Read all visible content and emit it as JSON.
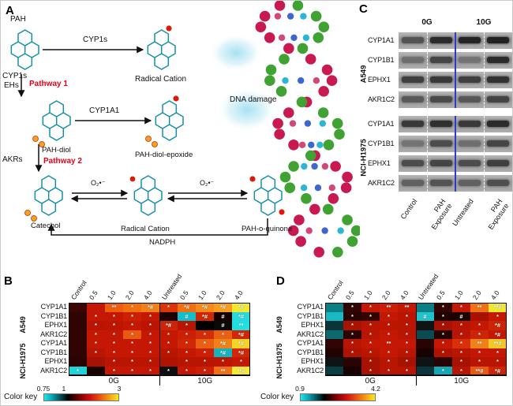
{
  "figure": {
    "panel_a": "A",
    "panel_b": "B",
    "panel_c": "C",
    "panel_d": "D"
  },
  "pathway": {
    "pah": "PAH",
    "cyp1s_arrow": "CYP1s",
    "radical_cation_top": "Radical Cation",
    "cyp1s_left": "CYP1s",
    "ehs_left": "EHs",
    "pathway1": "Pathway 1",
    "cyp1a1_arrow": "CYP1A1",
    "pah_diol": "PAH-diol",
    "pah_diol_epoxide": "PAH-diol-epoxide",
    "dna_damage": "DNA damage",
    "akrs_left": "AKRs",
    "pathway2": "Pathway 2",
    "catechol": "Catechol",
    "radical_cation_bottom": "Radical Cation",
    "o2_left": "O₂•⁻",
    "o2_right": "O₂•⁻",
    "pah_o_quinone": "PAH-o-quinone",
    "nadph": "NADPH"
  },
  "western": {
    "group_labels": [
      "0G",
      "10G"
    ],
    "lane_labels": [
      "Control",
      "PAH\nExposure",
      "Untreated",
      "PAH\nExposure"
    ],
    "blocks": [
      {
        "cell_line": "A549",
        "rows": [
          {
            "gene": "CYP1A1",
            "bands": [
              0.55,
              0.85,
              0.9,
              0.92
            ]
          },
          {
            "gene": "CYP1B1",
            "bands": [
              0.35,
              0.65,
              0.3,
              0.85
            ]
          },
          {
            "gene": "EPHX1",
            "bands": [
              0.7,
              0.75,
              0.7,
              0.8
            ]
          },
          {
            "gene": "AKR1C2",
            "bands": [
              0.5,
              0.62,
              0.52,
              0.66
            ]
          }
        ]
      },
      {
        "cell_line": "NCI-H1975",
        "rows": [
          {
            "gene": "CYP1A1",
            "bands": [
              0.75,
              0.82,
              0.75,
              0.85
            ]
          },
          {
            "gene": "CYP1B1",
            "bands": [
              0.3,
              0.6,
              0.35,
              0.65
            ]
          },
          {
            "gene": "EPHX1",
            "bands": [
              0.6,
              0.66,
              0.6,
              0.7
            ]
          },
          {
            "gene": "AKR1C2",
            "bands": [
              0.45,
              0.55,
              0.45,
              0.58
            ]
          }
        ]
      }
    ]
  },
  "heatmap_b": {
    "col_labels": [
      "Control",
      "0.5",
      "1.0",
      "2.0",
      "4.0",
      "Untreated",
      "0.5",
      "1.0",
      "2.0",
      "4.0"
    ],
    "group_labels": [
      "0G",
      "10G"
    ],
    "cell_lines": [
      "A549",
      "NCI-H1975"
    ],
    "color_key": {
      "label": "Color key",
      "ticks": [
        {
          "t": "0.75",
          "p": 0
        },
        {
          "t": "1",
          "p": 0.27
        },
        {
          "t": "3",
          "p": 1
        }
      ]
    },
    "rows": [
      {
        "gene": "CYP1A1",
        "cells": [
          {
            "c": "#3a0503"
          },
          {
            "c": "#c41804"
          },
          {
            "c": "#ee5c0e",
            "m": "**"
          },
          {
            "c": "#f0700f",
            "m": "*"
          },
          {
            "c": "#f08018",
            "m": "*#"
          },
          {
            "c": "#dc3408",
            "m": "*"
          },
          {
            "c": "#f0700f",
            "m": "*#"
          },
          {
            "c": "#f58a1a",
            "m": "*#"
          },
          {
            "c": "#f89c20",
            "m": "*#"
          },
          {
            "c": "#f2e82c",
            "m": "*#"
          }
        ]
      },
      {
        "gene": "CYP1B1",
        "cells": [
          {
            "c": "#300402"
          },
          {
            "c": "#c41804",
            "m": "*"
          },
          {
            "c": "#c41804",
            "m": "*"
          },
          {
            "c": "#cc2006",
            "m": "*"
          },
          {
            "c": "#c41804",
            "m": "*"
          },
          {
            "c": "#1c0301"
          },
          {
            "c": "#10c0cc",
            "m": "#"
          },
          {
            "c": "#d02806",
            "m": "*#"
          },
          {
            "c": "#140201",
            "m": "#"
          },
          {
            "c": "#28d8dc",
            "m": "*#"
          }
        ]
      },
      {
        "gene": "EPHX1",
        "cells": [
          {
            "c": "#300402"
          },
          {
            "c": "#b81503",
            "m": "*"
          },
          {
            "c": "#bc1603",
            "m": "*"
          },
          {
            "c": "#c41804",
            "m": "*"
          },
          {
            "c": "#b81503",
            "m": "*"
          },
          {
            "c": "#cc2406",
            "m": "*#"
          },
          {
            "c": "#b81503",
            "m": "*"
          },
          {
            "c": "#000000"
          },
          {
            "c": "#0a0a0a",
            "m": "#"
          },
          {
            "c": "#20e0e4",
            "m": "**"
          }
        ]
      },
      {
        "gene": "AKR1C2",
        "cells": [
          {
            "c": "#300402"
          },
          {
            "c": "#c41804",
            "m": "*"
          },
          {
            "c": "#c41804",
            "m": "*"
          },
          {
            "c": "#e85a10",
            "m": "*"
          },
          {
            "c": "#c41804",
            "m": "*"
          },
          {
            "c": "#c41804",
            "m": "*"
          },
          {
            "c": "#cc2006",
            "m": "*"
          },
          {
            "c": "#d42c07",
            "m": "*"
          },
          {
            "c": "#ea6012",
            "m": "*"
          },
          {
            "c": "#d02806",
            "m": "*#"
          }
        ]
      },
      {
        "gene": "CYP1A1",
        "cells": [
          {
            "c": "#300402"
          },
          {
            "c": "#c41804",
            "m": "*"
          },
          {
            "c": "#c41804",
            "m": "*"
          },
          {
            "c": "#c41804",
            "m": "*"
          },
          {
            "c": "#c41804",
            "m": "*"
          },
          {
            "c": "#c41804",
            "m": "*"
          },
          {
            "c": "#d02806",
            "m": "*"
          },
          {
            "c": "#ea6012",
            "m": "*"
          },
          {
            "c": "#f08018",
            "m": "*#"
          },
          {
            "c": "#f5d426",
            "m": "*#"
          }
        ]
      },
      {
        "gene": "CYP1B1",
        "cells": [
          {
            "c": "#300402"
          },
          {
            "c": "#b81503",
            "m": "*"
          },
          {
            "c": "#c41804",
            "m": "*"
          },
          {
            "c": "#c41804",
            "m": "*"
          },
          {
            "c": "#c41804",
            "m": "*"
          },
          {
            "c": "#b81503",
            "m": "*"
          },
          {
            "c": "#c41804",
            "m": "*"
          },
          {
            "c": "#cc2006",
            "m": "*"
          },
          {
            "c": "#14b4c0",
            "m": "*#"
          },
          {
            "c": "#d02806",
            "m": "*#"
          }
        ]
      },
      {
        "gene": "EPHX1",
        "cells": [
          {
            "c": "#2a0402"
          },
          {
            "c": "#a81202"
          },
          {
            "c": "#b81503",
            "m": "*"
          },
          {
            "c": "#b81503",
            "m": "*"
          },
          {
            "c": "#b81503",
            "m": "*"
          },
          {
            "c": "#b01302"
          },
          {
            "c": "#b81503",
            "m": "*"
          },
          {
            "c": "#b81503",
            "m": "*"
          },
          {
            "c": "#bc1603",
            "m": "*"
          },
          {
            "c": "#c41804",
            "m": "*"
          }
        ]
      },
      {
        "gene": "AKR1C2",
        "cells": [
          {
            "c": "#20d4dc",
            "m": "*"
          },
          {
            "c": "#1c0301"
          },
          {
            "c": "#c41804",
            "m": "*"
          },
          {
            "c": "#c41804",
            "m": "*"
          },
          {
            "c": "#c41804",
            "m": "*"
          },
          {
            "c": "#0e0f10",
            "m": "*"
          },
          {
            "c": "#c41804",
            "m": "*"
          },
          {
            "c": "#cc2006",
            "m": "*"
          },
          {
            "c": "#f07014",
            "m": "**"
          },
          {
            "c": "#f5ea30",
            "m": "**#"
          }
        ]
      }
    ]
  },
  "heatmap_d": {
    "col_labels": [
      "Control",
      "0.5",
      "1.0",
      "2.0",
      "4.0",
      "Untreated",
      "0.5",
      "1.0",
      "2.0",
      "4.0"
    ],
    "group_labels": [
      "0G",
      "10G"
    ],
    "cell_lines": [
      "A549",
      "NCI-H1975"
    ],
    "color_key": {
      "label": "Color key",
      "ticks": [
        {
          "t": "0.9",
          "p": 0
        },
        {
          "t": "4.2",
          "p": 1
        }
      ]
    },
    "rows": [
      {
        "gene": "CYP1A1",
        "cells": [
          {
            "c": "#0b7f86"
          },
          {
            "c": "#330502",
            "m": "*"
          },
          {
            "c": "#c41804",
            "m": "*"
          },
          {
            "c": "#cc2006",
            "m": "**"
          },
          {
            "c": "#c41804",
            "m": "**"
          },
          {
            "c": "#0b7f86"
          },
          {
            "c": "#330502",
            "m": "*"
          },
          {
            "c": "#c41804",
            "m": "*"
          },
          {
            "c": "#f07014",
            "m": "**"
          },
          {
            "c": "#f0e82c",
            "m": "**#"
          }
        ]
      },
      {
        "gene": "CYP1B1",
        "cells": [
          {
            "c": "#18b9c4"
          },
          {
            "c": "#2a0402",
            "m": "*"
          },
          {
            "c": "#330502",
            "m": "*"
          },
          {
            "c": "#c41804",
            "m": "*"
          },
          {
            "c": "#b81503",
            "m": "*"
          },
          {
            "c": "#20c3cc",
            "m": "#"
          },
          {
            "c": "#200301",
            "m": "*"
          },
          {
            "c": "#1a0301",
            "m": "#"
          },
          {
            "c": "#a81202"
          },
          {
            "c": "#c41804",
            "m": "*"
          }
        ]
      },
      {
        "gene": "EPHX1",
        "cells": [
          {
            "c": "#0a3438"
          },
          {
            "c": "#aa1202",
            "m": "*"
          },
          {
            "c": "#b81503",
            "m": "*"
          },
          {
            "c": "#bc1603",
            "m": "*"
          },
          {
            "c": "#b81503",
            "m": "*"
          },
          {
            "c": "#101314"
          },
          {
            "c": "#a81202",
            "m": "*"
          },
          {
            "c": "#b81503",
            "m": "*"
          },
          {
            "c": "#c41804",
            "m": "*"
          },
          {
            "c": "#cc2406",
            "m": "*#"
          }
        ]
      },
      {
        "gene": "AKR1C2",
        "cells": [
          {
            "c": "#0a6a70"
          },
          {
            "c": "#2a0402",
            "m": "*"
          },
          {
            "c": "#b81503",
            "m": "*"
          },
          {
            "c": "#c41804",
            "m": "*"
          },
          {
            "c": "#b81503",
            "m": "*"
          },
          {
            "c": "#0a4a50"
          },
          {
            "c": "#240402",
            "m": "*"
          },
          {
            "c": "#b81503",
            "m": "*"
          },
          {
            "c": "#cc2406",
            "m": "*"
          },
          {
            "c": "#c41804",
            "m": "*#"
          }
        ]
      },
      {
        "gene": "CYP1A1",
        "cells": [
          {
            "c": "#330502"
          },
          {
            "c": "#b81503",
            "m": "*"
          },
          {
            "c": "#c41804",
            "m": "*"
          },
          {
            "c": "#c41804",
            "m": "**"
          },
          {
            "c": "#c41804",
            "m": "*"
          },
          {
            "c": "#2a0402"
          },
          {
            "c": "#c41804",
            "m": "*"
          },
          {
            "c": "#d83008",
            "m": "*"
          },
          {
            "c": "#f08018",
            "m": "**"
          },
          {
            "c": "#f3c824",
            "m": "**#"
          }
        ]
      },
      {
        "gene": "CYP1B1",
        "cells": [
          {
            "c": "#200301"
          },
          {
            "c": "#b01302",
            "m": "*"
          },
          {
            "c": "#b81503",
            "m": "*"
          },
          {
            "c": "#c41804",
            "m": "*"
          },
          {
            "c": "#b81503",
            "m": "*"
          },
          {
            "c": "#180201"
          },
          {
            "c": "#b01302",
            "m": "*"
          },
          {
            "c": "#b81503",
            "m": "*"
          },
          {
            "c": "#c41804",
            "m": "*"
          },
          {
            "c": "#c41804",
            "m": "*"
          }
        ]
      },
      {
        "gene": "EPHX1",
        "cells": [
          {
            "c": "#101314"
          },
          {
            "c": "#2a0402"
          },
          {
            "c": "#a81202",
            "m": "*"
          },
          {
            "c": "#b81503",
            "m": "*"
          },
          {
            "c": "#a81202",
            "m": "*"
          },
          {
            "c": "#101314"
          },
          {
            "c": "#2a0402"
          },
          {
            "c": "#a81202",
            "m": "*"
          },
          {
            "c": "#b81503",
            "m": "*"
          },
          {
            "c": "#b81503",
            "m": "*"
          }
        ]
      },
      {
        "gene": "AKR1C2",
        "cells": [
          {
            "c": "#0a3e44"
          },
          {
            "c": "#180201"
          },
          {
            "c": "#a81202",
            "m": "*"
          },
          {
            "c": "#b81503",
            "m": "*"
          },
          {
            "c": "#b81503",
            "m": "*"
          },
          {
            "c": "#0a363c"
          },
          {
            "c": "#14a8b4",
            "m": "*"
          },
          {
            "c": "#b81503",
            "m": "*"
          },
          {
            "c": "#e85a10",
            "m": "**#"
          },
          {
            "c": "#cc2406",
            "m": "*#"
          }
        ]
      }
    ]
  }
}
